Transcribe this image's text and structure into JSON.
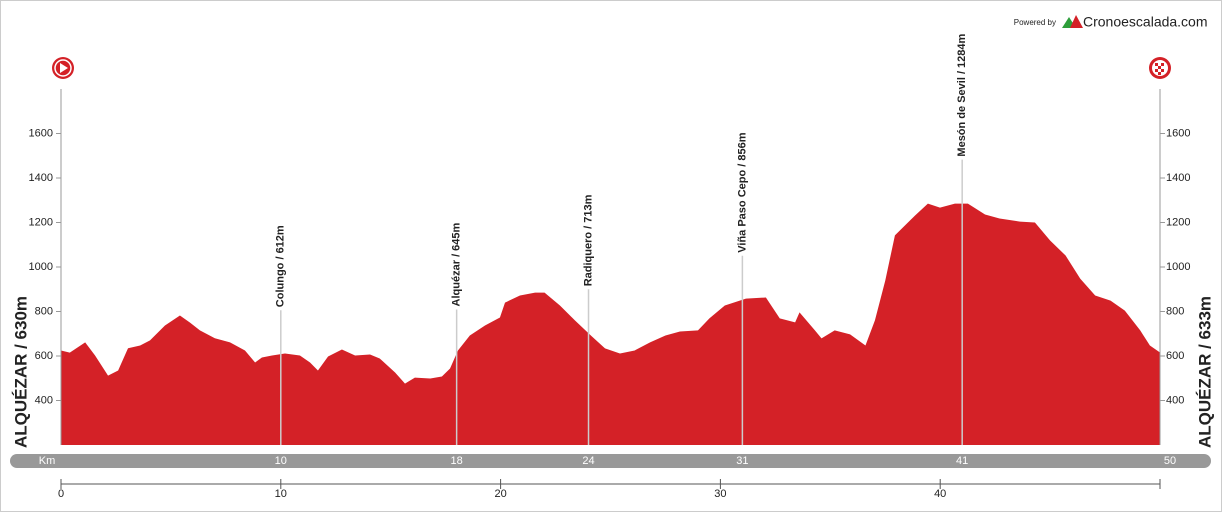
{
  "header": {
    "powered": "Powered by",
    "brand": "Cronoescalada.com"
  },
  "chart_data": {
    "type": "area",
    "color": "#d42127",
    "start_label": "ALQUÉZAR / 630m",
    "finish_label": "ALQUÉZAR / 633m",
    "km_label": "Km",
    "x": [
      0,
      0.4,
      1.1,
      1.55,
      2.14,
      2.6,
      3.05,
      3.6,
      4.05,
      4.73,
      5.41,
      5.87,
      6.32,
      7.0,
      7.69,
      8.37,
      8.83,
      9.14,
      9.6,
      10.19,
      10.87,
      11.33,
      11.69,
      12.15,
      12.78,
      13.38,
      14.06,
      14.5,
      15.2,
      15.65,
      16.1,
      16.8,
      17.33,
      17.7,
      18.06,
      18.6,
      19.29,
      19.97,
      20.2,
      20.88,
      21.57,
      22.0,
      22.7,
      23.38,
      24.15,
      24.75,
      25.43,
      26.1,
      26.8,
      27.5,
      28.16,
      28.98,
      29.5,
      30.2,
      31.16,
      32.07,
      32.7,
      33.4,
      33.6,
      34.3,
      34.6,
      35.2,
      35.9,
      36.6,
      37.03,
      37.5,
      37.94,
      38.4,
      38.85,
      39.44,
      39.99,
      40.67,
      41.26,
      42.04,
      42.7,
      43.63,
      44.31,
      45.0,
      45.7,
      46.37,
      47.05,
      47.75,
      48.4,
      49.1,
      49.54,
      50
    ],
    "values": [
      625,
      615,
      661,
      602,
      512,
      535,
      635,
      647,
      670,
      737,
      782,
      750,
      715,
      680,
      661,
      625,
      571,
      593,
      602,
      611,
      602,
      571,
      535,
      598,
      629,
      602,
      607,
      589,
      526,
      476,
      503,
      499,
      508,
      544,
      625,
      692,
      737,
      773,
      840,
      872,
      885,
      885,
      827,
      760,
      688,
      634,
      611,
      625,
      661,
      692,
      710,
      715,
      769,
      827,
      858,
      863,
      769,
      751,
      796,
      715,
      679,
      715,
      697,
      647,
      760,
      939,
      1142,
      1187,
      1231,
      1285,
      1267,
      1285,
      1285,
      1236,
      1218,
      1204,
      1200,
      1119,
      1052,
      948,
      872,
      849,
      804,
      715,
      647,
      616
    ],
    "xlim": [
      0,
      50
    ],
    "xticks": [
      0,
      10,
      20,
      30,
      40
    ],
    "ylim": [
      200,
      1800
    ],
    "yticks": [
      400,
      600,
      800,
      1000,
      1200,
      1400,
      1600
    ],
    "passes": [
      {
        "label": "Colungo / 612m",
        "km": 10
      },
      {
        "label": "Alquézar / 645m",
        "km": 18
      },
      {
        "label": "Radiquero / 713m",
        "km": 24
      },
      {
        "label": "Viña Paso Cepo / 856m",
        "km": 31
      },
      {
        "label": "Mesón de Sevil / 1284m",
        "km": 41
      }
    ]
  }
}
